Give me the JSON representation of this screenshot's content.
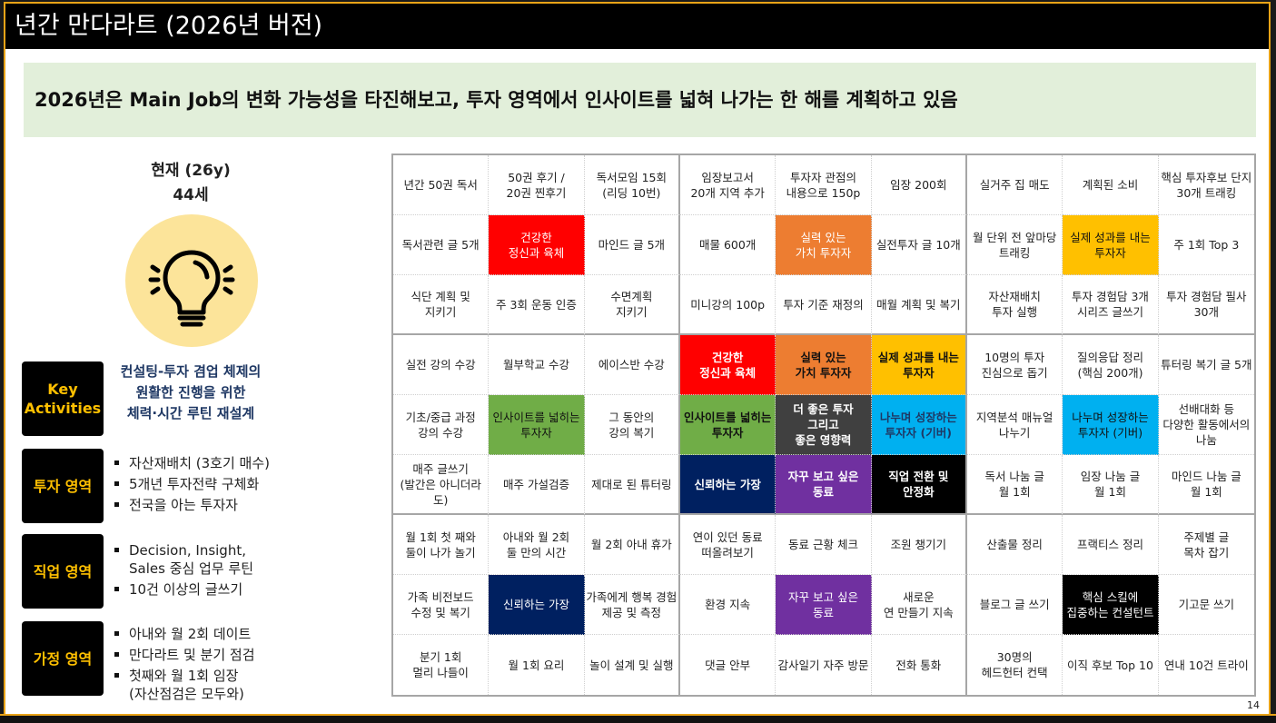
{
  "title": "년간 만다라트 (2026년 버전)",
  "banner": "2026년은 Main Job의 변화 가능성을 타진해보고, 투자 영역에서 인사이트를 넓혀 나가는 한 해를 계획하고 있음",
  "status": {
    "age_line": "현재 (26y)\n44세",
    "icon": "lightbulb-icon"
  },
  "key_activities": {
    "label": "Key\nActivities",
    "text": "컨설팅-투자 겸업 체제의\n원활한 진행을 위한\n체력·시간 루틴 재설계"
  },
  "areas": [
    {
      "label": "투자 영역",
      "items": [
        "자산재배치 (3호기 매수)",
        "5개년 투자전략 구체화",
        "전국을 아는 투자자"
      ]
    },
    {
      "label": "직업 영역",
      "items": [
        "Decision, Insight,\nSales 중심 업무 루틴",
        "10건 이상의 글쓰기"
      ]
    },
    {
      "label": "가정 영역",
      "items": [
        "아내와 월 2회 데이트",
        "만다라트 및 분기 점검",
        "첫째와 월 1회 임장\n(자산점검은 모두와)"
      ]
    }
  ],
  "colors": {
    "red": "#FF0000",
    "orange": "#ED7D31",
    "yellow": "#FFC000",
    "green": "#70AD47",
    "dark": "#404040",
    "blue": "#00B0F0",
    "navy": "#002060",
    "purple": "#7030A0",
    "black": "#000000"
  },
  "grid": [
    [
      {
        "t": "년간 50권 독서"
      },
      {
        "t": "50권 후기 /\n20권 찐후기"
      },
      {
        "t": "독서모임 15회\n(리딩 10번)"
      },
      {
        "t": "임장보고서\n20개 지역 추가"
      },
      {
        "t": "투자자 관점의\n내용으로 150p"
      },
      {
        "t": "임장 200회"
      },
      {
        "t": "실거주 집 매도"
      },
      {
        "t": "계획된 소비"
      },
      {
        "t": "핵심 투자후보 단지\n30개 트래킹"
      }
    ],
    [
      {
        "t": "독서관련 글 5개"
      },
      {
        "t": "건강한\n정신과 육체",
        "c": "red"
      },
      {
        "t": "마인드 글 5개"
      },
      {
        "t": "매물 600개"
      },
      {
        "t": "실력 있는\n가치 투자자",
        "c": "orange"
      },
      {
        "t": "실전투자 글 10개"
      },
      {
        "t": "월 단위 전 앞마당\n트래킹"
      },
      {
        "t": "실제 성과를 내는\n투자자",
        "c": "yellow"
      },
      {
        "t": "주 1회 Top 3"
      }
    ],
    [
      {
        "t": "식단 계획 및\n지키기"
      },
      {
        "t": "주 3회 운동 인증"
      },
      {
        "t": "수면계획\n지키기"
      },
      {
        "t": "미니강의 100p"
      },
      {
        "t": "투자 기준 재정의"
      },
      {
        "t": "매월 계획 및 복기"
      },
      {
        "t": "자산재배치\n투자 실행"
      },
      {
        "t": "투자 경험담 3개\n시리즈 글쓰기"
      },
      {
        "t": "투자 경험담 필사\n30개"
      }
    ],
    [
      {
        "t": "실전 강의 수강"
      },
      {
        "t": "월부학교 수강"
      },
      {
        "t": "에이스반 수강"
      },
      {
        "t": "건강한\n정신과 육체",
        "c": "red"
      },
      {
        "t": "실력 있는\n가치 투자자",
        "c": "orange"
      },
      {
        "t": "실제 성과를 내는\n투자자",
        "c": "yellow"
      },
      {
        "t": "10명의 투자\n진심으로 돕기"
      },
      {
        "t": "질의응답 정리\n(핵심 200개)"
      },
      {
        "t": "튜터링 복기 글 5개"
      }
    ],
    [
      {
        "t": "기초/중급 과정\n강의 수강"
      },
      {
        "t": "인사이트를 넓히는\n투자자",
        "c": "green"
      },
      {
        "t": "그 동안의\n강의 복기"
      },
      {
        "t": "인사이트를 넓히는\n투자자",
        "c": "green"
      },
      {
        "t": "더 좋은 투자\n그리고\n좋은 영향력",
        "c": "dark"
      },
      {
        "t": "나누며 성장하는\n투자자 (기버)",
        "c": "blue"
      },
      {
        "t": "지역분석 매뉴얼\n나누기"
      },
      {
        "t": "나누며 성장하는\n투자자 (기버)",
        "c": "blue"
      },
      {
        "t": "선배대화 등\n다양한 활동에서의\n나눔"
      }
    ],
    [
      {
        "t": "매주 글쓰기\n(발간은 아니더라도)"
      },
      {
        "t": "매주 가설검증"
      },
      {
        "t": "제대로 된 튜터링"
      },
      {
        "t": "신뢰하는 가장",
        "c": "navy"
      },
      {
        "t": "자꾸 보고 싶은\n동료",
        "c": "purple"
      },
      {
        "t": "직업 전환 및\n안정화",
        "c": "black"
      },
      {
        "t": "독서 나눔 글\n월 1회"
      },
      {
        "t": "임장 나눔 글\n월 1회"
      },
      {
        "t": "마인드 나눔 글\n월 1회"
      }
    ],
    [
      {
        "t": "월 1회 첫 째와\n둘이 나가 놀기"
      },
      {
        "t": "아내와 월 2회\n둘 만의 시간"
      },
      {
        "t": "월 2회 아내 휴가"
      },
      {
        "t": "연이 있던 동료\n떠올려보기"
      },
      {
        "t": "동료 근황 체크"
      },
      {
        "t": "조원 챙기기"
      },
      {
        "t": "산출물 정리"
      },
      {
        "t": "프랙티스 정리"
      },
      {
        "t": "주제별 글\n목차 잡기"
      }
    ],
    [
      {
        "t": "가족 비전보드\n수정 및 복기"
      },
      {
        "t": "신뢰하는 가장",
        "c": "navy"
      },
      {
        "t": "가족에게 행복 경험\n제공 및 측정"
      },
      {
        "t": "환경 지속"
      },
      {
        "t": "자꾸 보고 싶은\n동료",
        "c": "purple"
      },
      {
        "t": "새로운\n연 만들기 지속"
      },
      {
        "t": "블로그 글 쓰기"
      },
      {
        "t": "핵심 스킬에\n집중하는 컨설턴트",
        "c": "black"
      },
      {
        "t": "기고문 쓰기"
      }
    ],
    [
      {
        "t": "분기 1회\n멀리 나들이"
      },
      {
        "t": "월 1회 요리"
      },
      {
        "t": "놀이 설계 및 실행"
      },
      {
        "t": "댓글 안부"
      },
      {
        "t": "감사일기 자주 방문"
      },
      {
        "t": "전화 통화"
      },
      {
        "t": "30명의\n헤드헌터 컨택"
      },
      {
        "t": "이직 후보 Top 10"
      },
      {
        "t": "연내 10건 트라이"
      }
    ]
  ],
  "page_number": "14"
}
